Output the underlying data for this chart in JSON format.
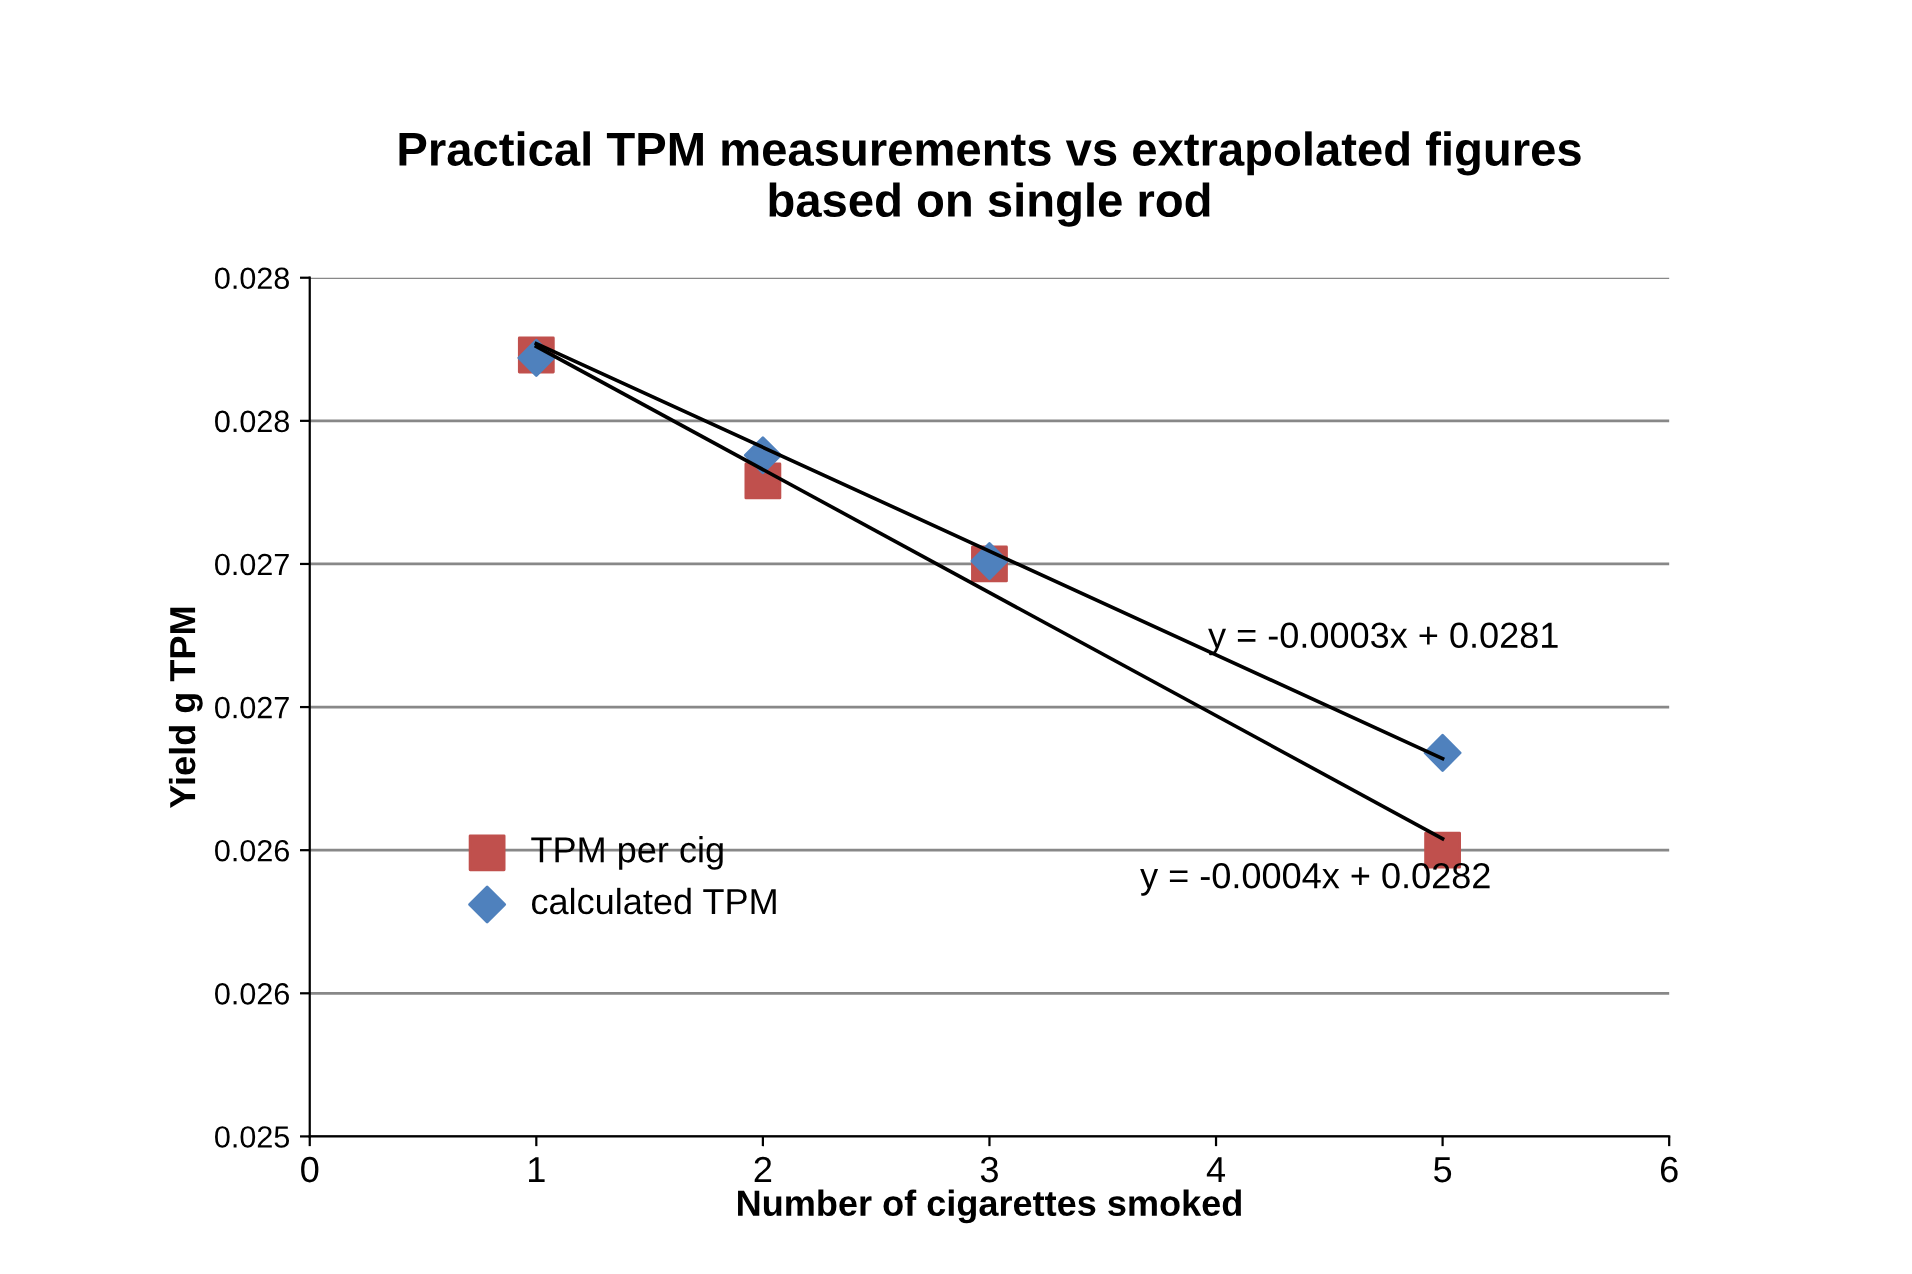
{
  "chart_data": {
    "type": "scatter",
    "title": "Practical TPM measurements vs extrapolated figures\nbased on single rod",
    "xlabel": "Number of cigarettes smoked",
    "ylabel": "Yield g TPM",
    "series": [
      {
        "name": "TPM per cig",
        "marker": "square",
        "color": "#c0504d",
        "x": [
          1,
          2,
          3,
          5
        ],
        "values": [
          0.02773,
          0.02729,
          0.027,
          0.026
        ]
      },
      {
        "name": "calculated TPM",
        "marker": "diamond",
        "color": "#4f81bd",
        "x": [
          1,
          2,
          3,
          5
        ],
        "values": [
          0.02772,
          0.02738,
          0.02701,
          0.02634
        ]
      },
      {
        "type": "line",
        "color": "#000000",
        "x": [
          1,
          5
        ],
        "values": [
          0.02776,
          0.02604
        ]
      },
      {
        "type": "line",
        "color": "#000000",
        "x": [
          1,
          5
        ],
        "values": [
          0.02777,
          0.02632
        ]
      }
    ],
    "annotations": [
      "y = -0.0003x + 0.0281",
      "y = -0.0004x + 0.0282"
    ],
    "xlim": [
      0,
      6
    ],
    "xticks": [
      0,
      1,
      2,
      3,
      4,
      5,
      6
    ],
    "ylim": [
      0.025,
      0.028
    ],
    "yticks": [
      0.025,
      {
        "value": 0.0255,
        "label": "0.026"
      },
      0.026,
      {
        "value": 0.0265,
        "label": "0.027"
      },
      0.027,
      {
        "value": 0.0275,
        "label": "0.028"
      },
      0.028
    ],
    "grid": "y",
    "legend": "left"
  }
}
